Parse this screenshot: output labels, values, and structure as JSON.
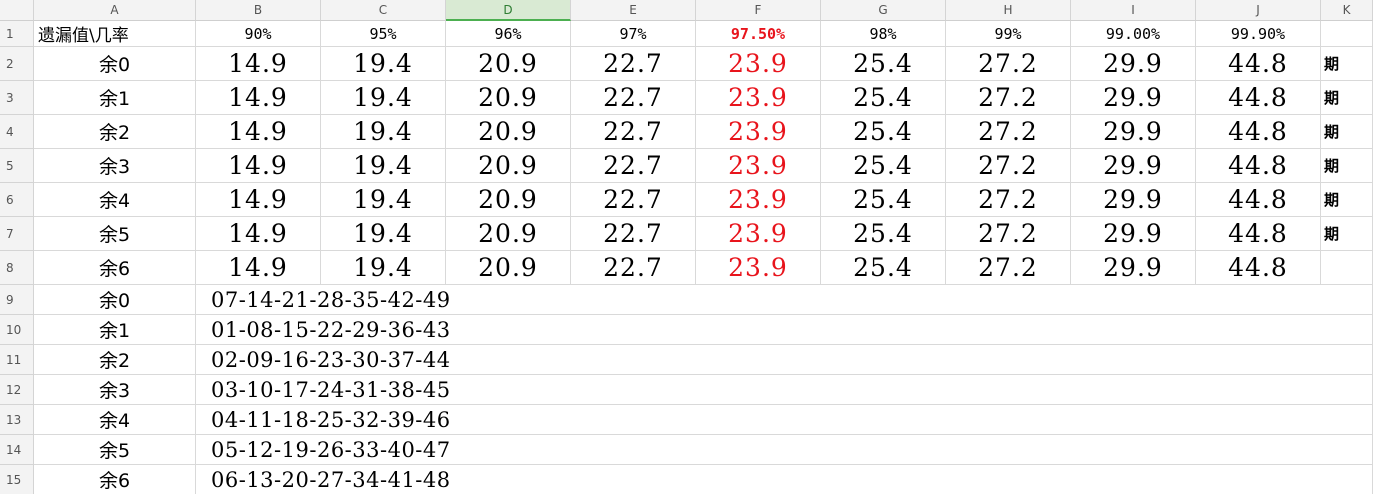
{
  "columns": [
    "A",
    "B",
    "C",
    "D",
    "E",
    "F",
    "G",
    "H",
    "I",
    "J",
    "K"
  ],
  "selected_column": "D",
  "row_numbers": [
    "1",
    "2",
    "3",
    "4",
    "5",
    "6",
    "7",
    "8",
    "9",
    "10",
    "11",
    "12",
    "13",
    "14",
    "15"
  ],
  "header_row": {
    "a1": "遗漏值\\几率",
    "percentages": [
      "90%",
      "95%",
      "96%",
      "97%",
      "97.50%",
      "98%",
      "99%",
      "99.00%",
      "99.90%"
    ]
  },
  "highlight_column": "F",
  "highlight_color": "#e8141c",
  "value_rows": [
    {
      "label": "余0",
      "values": [
        "14.9",
        "19.4",
        "20.9",
        "22.7",
        "23.9",
        "25.4",
        "27.2",
        "29.9",
        "44.8"
      ],
      "k": "期"
    },
    {
      "label": "余1",
      "values": [
        "14.9",
        "19.4",
        "20.9",
        "22.7",
        "23.9",
        "25.4",
        "27.2",
        "29.9",
        "44.8"
      ],
      "k": "期"
    },
    {
      "label": "余2",
      "values": [
        "14.9",
        "19.4",
        "20.9",
        "22.7",
        "23.9",
        "25.4",
        "27.2",
        "29.9",
        "44.8"
      ],
      "k": "期"
    },
    {
      "label": "余3",
      "values": [
        "14.9",
        "19.4",
        "20.9",
        "22.7",
        "23.9",
        "25.4",
        "27.2",
        "29.9",
        "44.8"
      ],
      "k": "期"
    },
    {
      "label": "余4",
      "values": [
        "14.9",
        "19.4",
        "20.9",
        "22.7",
        "23.9",
        "25.4",
        "27.2",
        "29.9",
        "44.8"
      ],
      "k": "期"
    },
    {
      "label": "余5",
      "values": [
        "14.9",
        "19.4",
        "20.9",
        "22.7",
        "23.9",
        "25.4",
        "27.2",
        "29.9",
        "44.8"
      ],
      "k": "期"
    },
    {
      "label": "余6",
      "values": [
        "14.9",
        "19.4",
        "20.9",
        "22.7",
        "23.9",
        "25.4",
        "27.2",
        "29.9",
        "44.8"
      ],
      "k": ""
    }
  ],
  "sequence_rows": [
    {
      "label": "余0",
      "sequence": "07-14-21-28-35-42-49"
    },
    {
      "label": "余1",
      "sequence": "01-08-15-22-29-36-43"
    },
    {
      "label": "余2",
      "sequence": "02-09-16-23-30-37-44"
    },
    {
      "label": "余3",
      "sequence": "03-10-17-24-31-38-45"
    },
    {
      "label": "余4",
      "sequence": "04-11-18-25-32-39-46"
    },
    {
      "label": "余5",
      "sequence": "05-12-19-26-33-40-47"
    },
    {
      "label": "余6",
      "sequence": "06-13-20-27-34-41-48"
    }
  ]
}
